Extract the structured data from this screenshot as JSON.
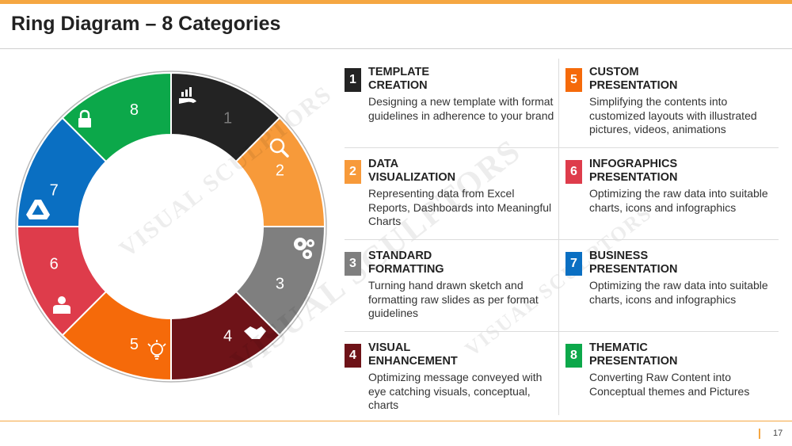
{
  "title": "Ring Diagram – 8 Categories",
  "page_number": "17",
  "watermark": "VISUAL SCULPTORS",
  "colors": {
    "accent": "#f5a742",
    "c1": "#232323",
    "c2": "#f79a3a",
    "c3": "#7f7f7f",
    "c4": "#6e1318",
    "c5": "#f56a0a",
    "c6": "#de3c4b",
    "c7": "#0a6fc2",
    "c8": "#0ca84a"
  },
  "ring": {
    "segments": [
      {
        "number": "1",
        "icon": "money-growth-icon"
      },
      {
        "number": "2",
        "icon": "magnifier-icon"
      },
      {
        "number": "3",
        "icon": "gears-icon"
      },
      {
        "number": "4",
        "icon": "handshake-icon"
      },
      {
        "number": "5",
        "icon": "lightbulb-icon"
      },
      {
        "number": "6",
        "icon": "user-icon"
      },
      {
        "number": "7",
        "icon": "drive-icon"
      },
      {
        "number": "8",
        "icon": "lock-icon"
      }
    ]
  },
  "categories": [
    {
      "number": "1",
      "heading_1": "TEMPLATE",
      "heading_2": "CREATION",
      "description": "Designing a new template with format guidelines in adherence to your brand"
    },
    {
      "number": "2",
      "heading_1": "DATA",
      "heading_2": "VISUALIZATION",
      "description": "Representing data from Excel Reports, Dashboards into Meaningful Charts"
    },
    {
      "number": "3",
      "heading_1": "STANDARD",
      "heading_2": "FORMATTING",
      "description": "Turning hand drawn sketch and formatting raw slides as per format guidelines"
    },
    {
      "number": "4",
      "heading_1": "VISUAL",
      "heading_2": "ENHANCEMENT",
      "description": "Optimizing message conveyed with eye catching visuals, conceptual, charts"
    },
    {
      "number": "5",
      "heading_1": "CUSTOM",
      "heading_2": "PRESENTATION",
      "description": "Simplifying the contents into customized layouts with illustrated pictures, videos, animations"
    },
    {
      "number": "6",
      "heading_1": "INFOGRAPHICS",
      "heading_2": "PRESENTATION",
      "description": "Optimizing the raw data into suitable charts, icons and infographics"
    },
    {
      "number": "7",
      "heading_1": "BUSINESS",
      "heading_2": "PRESENTATION",
      "description": "Optimizing the raw data into suitable charts, icons and infographics"
    },
    {
      "number": "8",
      "heading_1": "THEMATIC",
      "heading_2": "PRESENTATION",
      "description": "Converting Raw Content into Conceptual themes and Pictures"
    }
  ]
}
